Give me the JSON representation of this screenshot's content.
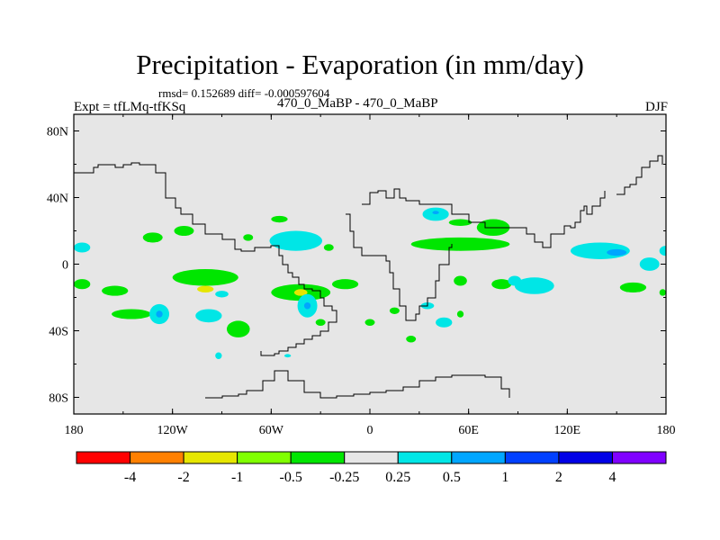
{
  "title": "Precipitation - Evaporation (in mm/day)",
  "stats_line": "rmsd= 0.152689 diff= -0.000597604",
  "left_label": "Expt = tfLMq-tfKSq",
  "center_label": "470_0_MaBP - 470_0_MaBP",
  "right_label": "DJF",
  "chart_data": {
    "type": "heatmap",
    "title": "Precipitation - Evaporation (in mm/day)",
    "subtitle": "rmsd= 0.152689 diff= -0.000597604",
    "xlabel": "",
    "ylabel": "",
    "xlim": [
      -180,
      180
    ],
    "ylim": [
      -90,
      90
    ],
    "x_ticks": [
      {
        "value": -180,
        "label": "180"
      },
      {
        "value": -120,
        "label": "120W"
      },
      {
        "value": -60,
        "label": "60W"
      },
      {
        "value": 0,
        "label": "0"
      },
      {
        "value": 60,
        "label": "60E"
      },
      {
        "value": 120,
        "label": "120E"
      },
      {
        "value": 180,
        "label": "180"
      }
    ],
    "y_ticks": [
      {
        "value": 80,
        "label": "80N"
      },
      {
        "value": 40,
        "label": "40N"
      },
      {
        "value": 0,
        "label": "0"
      },
      {
        "value": -40,
        "label": "40S"
      },
      {
        "value": -80,
        "label": "80S"
      }
    ],
    "background_color": "#e6e6e6",
    "colorbar": {
      "levels": [
        "-4",
        "-2",
        "-1",
        "-0.5",
        "-0.25",
        "0.25",
        "0.5",
        "1",
        "2",
        "4"
      ],
      "colors": [
        "#ff0000",
        "#ff8000",
        "#e6e600",
        "#80ff00",
        "#00e600",
        "#e6e6e6",
        "#00e6e6",
        "#00a6ff",
        "#0040ff",
        "#0000e6",
        "#8000ff"
      ]
    },
    "anomalies": [
      {
        "lon": -175,
        "lat": 10,
        "rx": 5,
        "ry": 3,
        "level": 0.5
      },
      {
        "lon": -175,
        "lat": -12,
        "rx": 5,
        "ry": 3,
        "level": -0.5
      },
      {
        "lon": -155,
        "lat": -16,
        "rx": 8,
        "ry": 3,
        "level": -0.5
      },
      {
        "lon": -145,
        "lat": -30,
        "rx": 12,
        "ry": 3,
        "level": -0.5
      },
      {
        "lon": -132,
        "lat": 16,
        "rx": 6,
        "ry": 3,
        "level": -0.5
      },
      {
        "lon": -128,
        "lat": -30,
        "rx": 6,
        "ry": 6,
        "level": 0.5
      },
      {
        "lon": -128,
        "lat": -30,
        "rx": 2,
        "ry": 2,
        "level": 1
      },
      {
        "lon": -113,
        "lat": 20,
        "rx": 6,
        "ry": 3,
        "level": -0.5
      },
      {
        "lon": -100,
        "lat": -8,
        "rx": 20,
        "ry": 5,
        "level": -0.5
      },
      {
        "lon": -100,
        "lat": -15,
        "rx": 5,
        "ry": 2,
        "level": -1
      },
      {
        "lon": -98,
        "lat": -31,
        "rx": 8,
        "ry": 4,
        "level": 0.5
      },
      {
        "lon": -90,
        "lat": -18,
        "rx": 4,
        "ry": 2,
        "level": 0.5
      },
      {
        "lon": -80,
        "lat": -39,
        "rx": 7,
        "ry": 5,
        "level": -0.5
      },
      {
        "lon": -92,
        "lat": -55,
        "rx": 2,
        "ry": 2,
        "level": 0.5
      },
      {
        "lon": -74,
        "lat": 16,
        "rx": 3,
        "ry": 2,
        "level": -0.5
      },
      {
        "lon": -45,
        "lat": 14,
        "rx": 16,
        "ry": 6,
        "level": 0.5
      },
      {
        "lon": -25,
        "lat": 10,
        "rx": 3,
        "ry": 2,
        "level": -0.5
      },
      {
        "lon": -55,
        "lat": 27,
        "rx": 5,
        "ry": 2,
        "level": -0.5
      },
      {
        "lon": -42,
        "lat": -17,
        "rx": 18,
        "ry": 5,
        "level": -0.5
      },
      {
        "lon": -42,
        "lat": -17,
        "rx": 4,
        "ry": 2,
        "level": -1
      },
      {
        "lon": -38,
        "lat": -25,
        "rx": 6,
        "ry": 7,
        "level": 0.5
      },
      {
        "lon": -38,
        "lat": -25,
        "rx": 2,
        "ry": 2,
        "level": 1
      },
      {
        "lon": -30,
        "lat": -35,
        "rx": 3,
        "ry": 2,
        "level": -0.5
      },
      {
        "lon": -15,
        "lat": -12,
        "rx": 8,
        "ry": 3,
        "level": -0.5
      },
      {
        "lon": -50,
        "lat": -55,
        "rx": 2,
        "ry": 1,
        "level": 0.5
      },
      {
        "lon": 0,
        "lat": -35,
        "rx": 3,
        "ry": 2,
        "level": -0.5
      },
      {
        "lon": 15,
        "lat": -28,
        "rx": 3,
        "ry": 2,
        "level": -0.5
      },
      {
        "lon": 25,
        "lat": -45,
        "rx": 3,
        "ry": 2,
        "level": -0.5
      },
      {
        "lon": 40,
        "lat": 30,
        "rx": 8,
        "ry": 4,
        "level": 0.5
      },
      {
        "lon": 40,
        "lat": 31,
        "rx": 2,
        "ry": 1,
        "level": 1
      },
      {
        "lon": 55,
        "lat": 25,
        "rx": 7,
        "ry": 2,
        "level": -0.5
      },
      {
        "lon": 55,
        "lat": 12,
        "rx": 30,
        "ry": 4,
        "level": -0.5
      },
      {
        "lon": 75,
        "lat": 22,
        "rx": 10,
        "ry": 5,
        "level": -0.5
      },
      {
        "lon": 55,
        "lat": -10,
        "rx": 4,
        "ry": 3,
        "level": -0.5
      },
      {
        "lon": 80,
        "lat": -12,
        "rx": 6,
        "ry": 3,
        "level": -0.5
      },
      {
        "lon": 35,
        "lat": -25,
        "rx": 4,
        "ry": 2,
        "level": 0.5
      },
      {
        "lon": 45,
        "lat": -35,
        "rx": 5,
        "ry": 3,
        "level": 0.5
      },
      {
        "lon": 55,
        "lat": -30,
        "rx": 2,
        "ry": 2,
        "level": -0.5
      },
      {
        "lon": 100,
        "lat": -13,
        "rx": 12,
        "ry": 5,
        "level": 0.5
      },
      {
        "lon": 88,
        "lat": -10,
        "rx": 4,
        "ry": 3,
        "level": 0.5
      },
      {
        "lon": 140,
        "lat": 8,
        "rx": 18,
        "ry": 5,
        "level": 0.5
      },
      {
        "lon": 150,
        "lat": 7,
        "rx": 6,
        "ry": 2,
        "level": 1
      },
      {
        "lon": 170,
        "lat": 0,
        "rx": 6,
        "ry": 4,
        "level": 0.5
      },
      {
        "lon": 160,
        "lat": -14,
        "rx": 8,
        "ry": 3,
        "level": -0.5
      },
      {
        "lon": 180,
        "lat": 8,
        "rx": 4,
        "ry": 3,
        "level": 0.5
      },
      {
        "lon": 178,
        "lat": -17,
        "rx": 2,
        "ry": 2,
        "level": -0.5
      }
    ],
    "coastlines": [
      {
        "name": "north-america",
        "lon": [
          -180,
          -168,
          -165,
          -160,
          -155,
          -150,
          -145,
          -140,
          -130,
          -124,
          -124,
          -118,
          -115,
          -108,
          -100,
          -90,
          -82,
          -78,
          -70,
          -65,
          -60,
          -55,
          -53,
          -50,
          -47,
          -43,
          -40,
          -35,
          -30,
          -28,
          -23,
          -20,
          -25,
          -30,
          -35,
          -40,
          -45,
          -50,
          -55,
          -58,
          -62,
          -66
        ],
        "lat": [
          55,
          58,
          60,
          60,
          58,
          60,
          61,
          60,
          55,
          48,
          40,
          34,
          30,
          24,
          18,
          15,
          9,
          8,
          10,
          10,
          11,
          5,
          0,
          -5,
          -8,
          -12,
          -15,
          -16,
          -20,
          -25,
          -28,
          -35,
          -40,
          -43,
          -45,
          -48,
          -50,
          -52,
          -54,
          -55,
          -55,
          -52
        ]
      },
      {
        "name": "eurasia",
        "lon": [
          -5,
          0,
          5,
          10,
          15,
          18,
          22,
          30,
          40,
          50,
          60,
          70,
          80,
          90,
          95,
          100,
          105,
          110,
          118,
          122,
          125,
          128,
          130,
          132,
          135,
          140,
          143
        ],
        "lat": [
          36,
          43,
          44,
          40,
          45,
          40,
          38,
          36,
          36,
          30,
          25,
          22,
          22,
          22,
          18,
          13,
          10,
          18,
          23,
          22,
          25,
          32,
          35,
          30,
          35,
          40,
          44
        ]
      },
      {
        "name": "east-asia",
        "lon": [
          150,
          155,
          158,
          162,
          165,
          170,
          175,
          178
        ],
        "lat": [
          42,
          46,
          48,
          52,
          58,
          62,
          65,
          60
        ]
      },
      {
        "name": "africa",
        "lon": [
          -15,
          -12,
          -10,
          -5,
          5,
          10,
          12,
          14,
          18,
          22,
          25,
          28,
          30,
          35,
          40,
          42,
          48,
          50
        ],
        "lat": [
          30,
          20,
          10,
          5,
          5,
          2,
          -5,
          -15,
          -25,
          -34,
          -34,
          -30,
          -25,
          -20,
          -10,
          0,
          10,
          12
        ]
      },
      {
        "name": "antarctica",
        "lon": [
          -100,
          -90,
          -80,
          -75,
          -65,
          -58,
          -50,
          -40,
          -30,
          -20,
          -10,
          0,
          10,
          20,
          30,
          40,
          50,
          60,
          70,
          80,
          85
        ],
        "lat": [
          -80,
          -79,
          -78,
          -76,
          -70,
          -64,
          -70,
          -77,
          -80,
          -79,
          -78,
          -77,
          -76,
          -74,
          -70,
          -68,
          -67,
          -67,
          -68,
          -75,
          -80
        ]
      }
    ]
  }
}
